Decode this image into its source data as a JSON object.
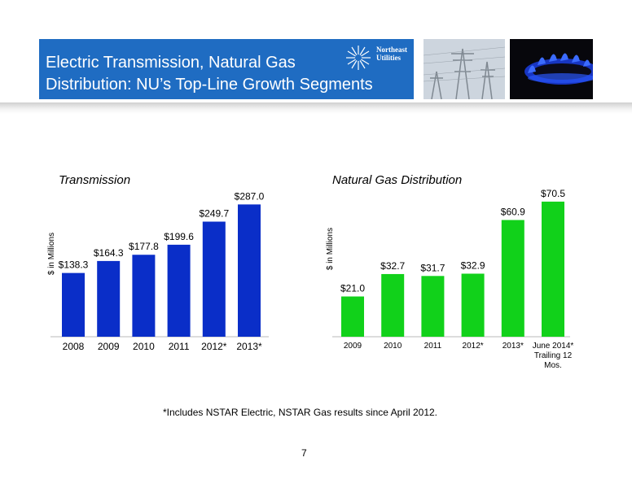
{
  "slide": {
    "title_line1": "Electric Transmission, Natural Gas",
    "title_line2": "Distribution:  NU’s Top-Line Growth Segments",
    "logo_text_line1": "Northeast",
    "logo_text_line2": "Utilities",
    "footnote": "*Includes NSTAR Electric, NSTAR Gas results since April 2012.",
    "page_number": "7",
    "colors": {
      "header": "#1f6cc2",
      "transmission_bars": "#0a2ec8",
      "gas_bars": "#11d11a"
    }
  },
  "chart_data": [
    {
      "type": "bar",
      "title": "Transmission",
      "ylabel": "$ in Millions",
      "categories": [
        "2008",
        "2009",
        "2010",
        "2011",
        "2012*",
        "2013*"
      ],
      "values": [
        138.3,
        164.3,
        177.8,
        199.6,
        249.7,
        287.0
      ],
      "data_labels": [
        "$138.3",
        "$164.3",
        "$177.8",
        "$199.6",
        "$249.7",
        "$287.0"
      ],
      "ylim": [
        0,
        300
      ],
      "grid": false,
      "color": "#0a2ec8"
    },
    {
      "type": "bar",
      "title": "Natural Gas Distribution",
      "ylabel": "$ in Millions",
      "categories": [
        "2009",
        "2010",
        "2011",
        "2012*",
        "2013*",
        "June 2014* Trailing 12 Mos."
      ],
      "category_lines": [
        [
          "2009"
        ],
        [
          "2010"
        ],
        [
          "2011"
        ],
        [
          "2012*"
        ],
        [
          "2013*"
        ],
        [
          "June 2014*",
          "Trailing 12",
          "Mos."
        ]
      ],
      "values": [
        21.0,
        32.7,
        31.7,
        32.9,
        60.9,
        70.5
      ],
      "data_labels": [
        "$21.0",
        "$32.7",
        "$31.7",
        "$32.9",
        "$60.9",
        "$70.5"
      ],
      "ylim": [
        0,
        73
      ],
      "grid": false,
      "color": "#11d11a"
    }
  ]
}
